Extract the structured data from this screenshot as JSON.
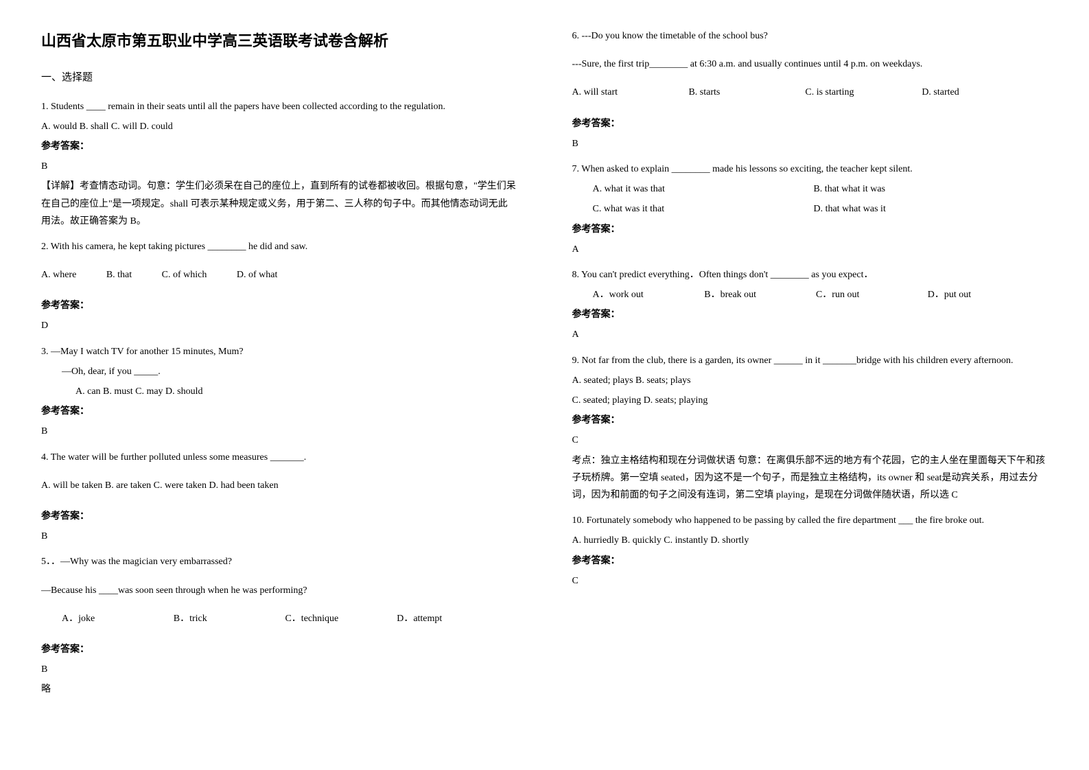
{
  "title": "山西省太原市第五职业中学高三英语联考试卷含解析",
  "section_heading": "一、选择题",
  "answer_label": "参考答案：",
  "lue": "略",
  "q1": {
    "stem": "1. Students ____ remain in their seats until all the papers have been collected according to the regulation.",
    "opts": "A. would        B. shall  C. will   D. could",
    "answer": "B",
    "explanation": "【详解】考查情态动词。句意：学生们必须呆在自己的座位上，直到所有的试卷都被收回。根据句意，\"学生们呆在自己的座位上\"是一项规定。shall 可表示某种规定或义务，用于第二、三人称的句子中。而其他情态动词无此用法。故正确答案为 B。"
  },
  "q2": {
    "stem": "2. With his camera, he kept taking pictures ________ he did and saw.",
    "optA": "A. where",
    "optB": "B. that",
    "optC": "C. of which",
    "optD": "D. of what",
    "answer": "D"
  },
  "q3": {
    "stem": "3. —May I watch TV for another 15 minutes, Mum?",
    "stem2": "—Oh, dear, if you _____.",
    "opts": "A. can   B. must        C. may         D. should",
    "answer": "B"
  },
  "q4": {
    "stem": "4. The water will be further polluted unless some measures _______.",
    "opts": "A. will be taken   B. are taken   C. were taken   D. had been taken",
    "answer": "B"
  },
  "q5": {
    "stem": "5．．—Why was the magician very embarrassed?",
    "stem2": "—Because his ____was soon seen through when he was performing?",
    "optA": "A．joke",
    "optB": "B．trick",
    "optC": "C．technique",
    "optD": "D．attempt",
    "answer": "B"
  },
  "q6": {
    "stem": "6. ---Do you know the timetable of the school bus?",
    "stem2": "---Sure, the first trip________ at 6:30 a.m. and usually continues until 4 p.m. on weekdays.",
    "optA": "A. will start",
    "optB": "B. starts",
    "optC": "C. is starting",
    "optD": "D. started",
    "answer": "B"
  },
  "q7": {
    "stem": "7. When asked to explain ________ made his lessons so exciting, the teacher kept silent.",
    "optA": "A. what it was that",
    "optB": "B. that what it was",
    "optC": "C. what was it that",
    "optD": "D. that what was it",
    "answer": "A"
  },
  "q8": {
    "stem": "8. You can't predict everything．Often things don't ________ as you expect．",
    "optA": "A．work out",
    "optB": "B．break out",
    "optC": "C．run out",
    "optD": "D．put out",
    "answer": "A"
  },
  "q9": {
    "stem": "9. Not far from the club, there is a garden, its owner ______ in it _______bridge with his children every afternoon.",
    "opts1": "A. seated; plays    B. seats; plays",
    "opts2": "C. seated; playing   D. seats; playing",
    "answer": "C",
    "explanation": "考点：独立主格结构和现在分词做状语 句意：在离俱乐部不远的地方有个花园，它的主人坐在里面每天下午和孩子玩桥牌。第一空填 seated，因为这不是一个句子，而是独立主格结构，its owner 和 seat是动宾关系，用过去分词，因为和前面的句子之间没有连词，第二空填 playing，是现在分词做伴随状语，所以选 C"
  },
  "q10": {
    "stem": "10. Fortunately somebody who happened to be passing by called the fire department ___ the fire broke out.",
    "opts": "A. hurriedly         B. quickly    C. instantly    D. shortly",
    "answer": "C"
  }
}
